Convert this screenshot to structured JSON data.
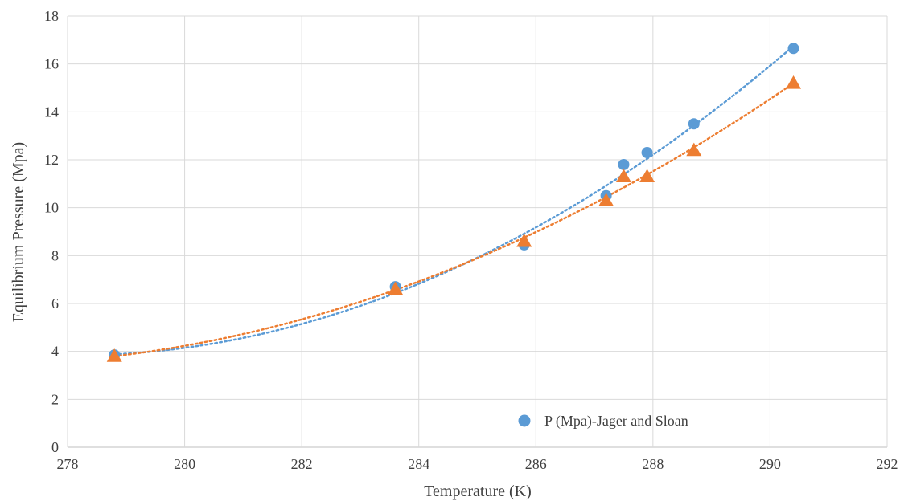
{
  "chart_data": {
    "type": "scatter",
    "xlabel": "Temperature (K)",
    "ylabel": "Equilibrium Pressure (Mpa)",
    "xlim": [
      278,
      292
    ],
    "ylim": [
      0,
      18
    ],
    "xticks": [
      278,
      280,
      282,
      284,
      286,
      288,
      290,
      292
    ],
    "yticks": [
      0,
      2,
      4,
      6,
      8,
      10,
      12,
      14,
      16,
      18
    ],
    "grid": true,
    "legend_position": "bottom-right",
    "series": [
      {
        "name": "P (Mpa)-Jager and Sloan",
        "marker": "circle",
        "color": "#5B9BD5",
        "trendline": "polynomial",
        "in_legend": true,
        "points": [
          {
            "x": 278.8,
            "y": 3.85
          },
          {
            "x": 283.6,
            "y": 6.7
          },
          {
            "x": 285.8,
            "y": 8.45
          },
          {
            "x": 287.2,
            "y": 10.5
          },
          {
            "x": 287.5,
            "y": 11.8
          },
          {
            "x": 287.9,
            "y": 12.3
          },
          {
            "x": 288.7,
            "y": 13.5
          },
          {
            "x": 290.4,
            "y": 16.65
          }
        ]
      },
      {
        "marker": "triangle",
        "color": "#ED7D31",
        "trendline": "polynomial",
        "in_legend": false,
        "points": [
          {
            "x": 278.8,
            "y": 3.8
          },
          {
            "x": 283.6,
            "y": 6.6
          },
          {
            "x": 285.8,
            "y": 8.6
          },
          {
            "x": 287.2,
            "y": 10.3
          },
          {
            "x": 287.5,
            "y": 11.3
          },
          {
            "x": 287.9,
            "y": 11.3
          },
          {
            "x": 288.7,
            "y": 12.4
          },
          {
            "x": 290.4,
            "y": 15.2
          }
        ]
      }
    ]
  }
}
